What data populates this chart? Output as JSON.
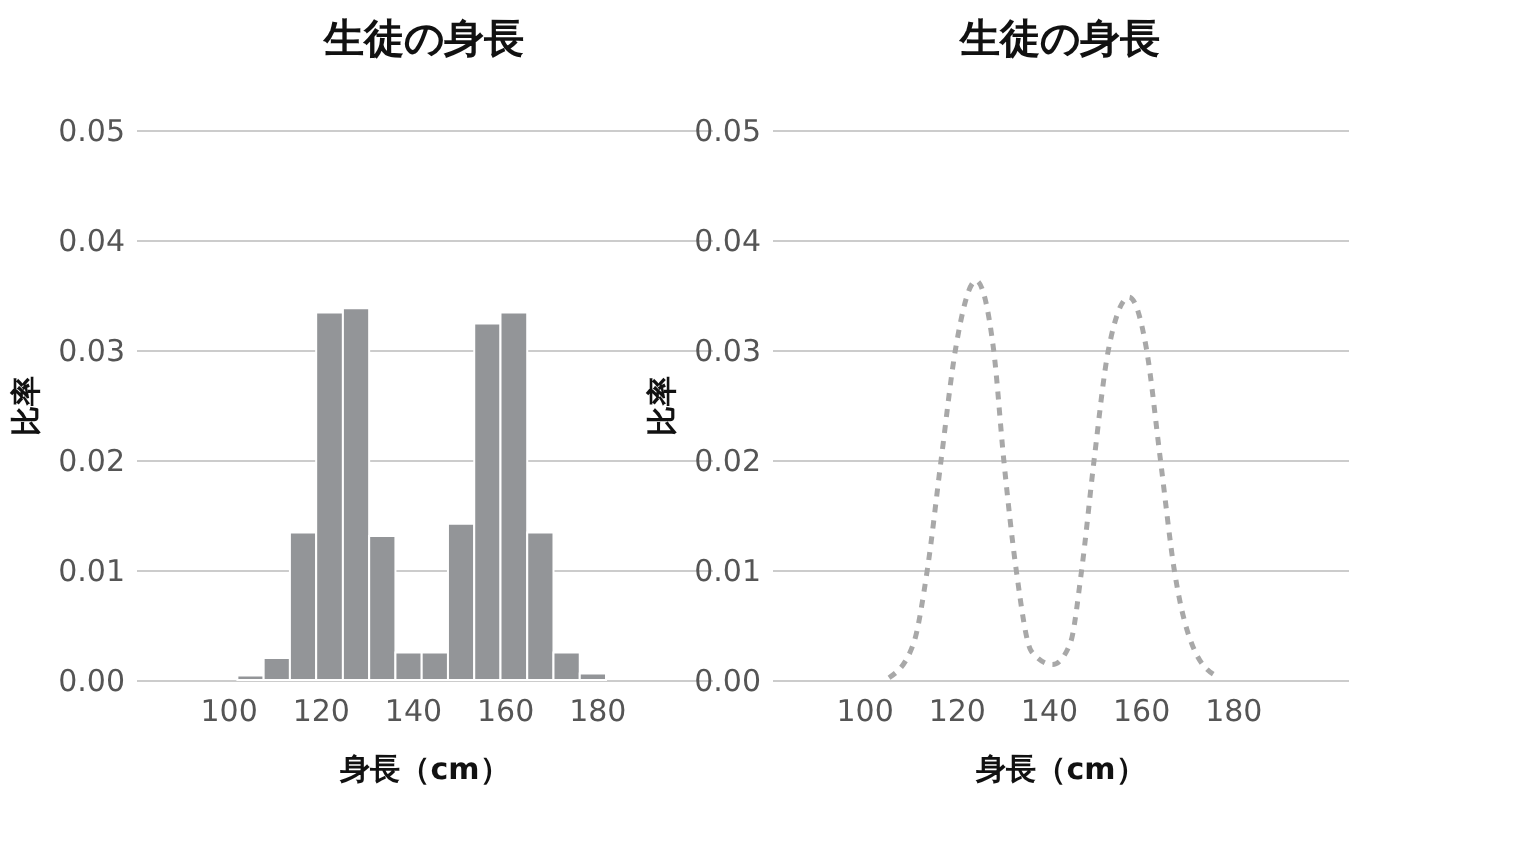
{
  "chart_data": [
    {
      "type": "histogram",
      "title": "生徒の身長",
      "xlabel": "身長（cm）",
      "ylabel": "比率",
      "bins": [
        102,
        107.7,
        113.4,
        119.1,
        124.9,
        130.6,
        136.3,
        142,
        147.7,
        153.4,
        159.1,
        164.9,
        170.6,
        176.3,
        182
      ],
      "values": [
        0.0004,
        0.002,
        0.0134,
        0.0334,
        0.0338,
        0.0131,
        0.0025,
        0.0025,
        0.0142,
        0.0324,
        0.0334,
        0.0134,
        0.0025,
        0.0006
      ],
      "color": "#939598",
      "xlim": [
        80,
        205
      ],
      "ylim": [
        0,
        0.05
      ],
      "xticks": [
        100,
        120,
        140,
        160,
        180
      ],
      "yticks": [
        {
          "value": 0,
          "label": "0.00"
        },
        {
          "value": 0.01,
          "label": "0.01"
        },
        {
          "value": 0.02,
          "label": "0.02"
        },
        {
          "value": 0.03,
          "label": "0.03"
        },
        {
          "value": 0.04,
          "label": "0.04"
        },
        {
          "value": 0.05,
          "label": "0.05"
        }
      ],
      "grid": "y"
    },
    {
      "type": "line",
      "title": "生徒の身長",
      "xlabel": "身長（cm）",
      "ylabel": "比率",
      "x": [
        105.4,
        110.7,
        113.7,
        116.7,
        119.8,
        124.3,
        128.1,
        130.3,
        133.0,
        136.3,
        140.9,
        144.7,
        147.2,
        149.9,
        153.0,
        157.5,
        161.3,
        164.3,
        167.3,
        171.8,
        177.1
      ],
      "values": [
        0.0002,
        0.0033,
        0.01,
        0.02,
        0.03,
        0.0363,
        0.03,
        0.02,
        0.01,
        0.0026,
        0.0014,
        0.0033,
        0.01,
        0.02,
        0.03,
        0.0348,
        0.03,
        0.02,
        0.01,
        0.0026,
        0.0002
      ],
      "color": "#a8a8a8",
      "line_style": "dashed",
      "xlim": [
        80,
        205
      ],
      "ylim": [
        0,
        0.05
      ],
      "xticks": [
        100,
        120,
        140,
        160,
        180
      ],
      "yticks": [
        {
          "value": 0,
          "label": "0.00"
        },
        {
          "value": 0.01,
          "label": "0.01"
        },
        {
          "value": 0.02,
          "label": "0.02"
        },
        {
          "value": 0.03,
          "label": "0.03"
        },
        {
          "value": 0.04,
          "label": "0.04"
        },
        {
          "value": 0.05,
          "label": "0.05"
        }
      ],
      "grid": "y"
    }
  ]
}
